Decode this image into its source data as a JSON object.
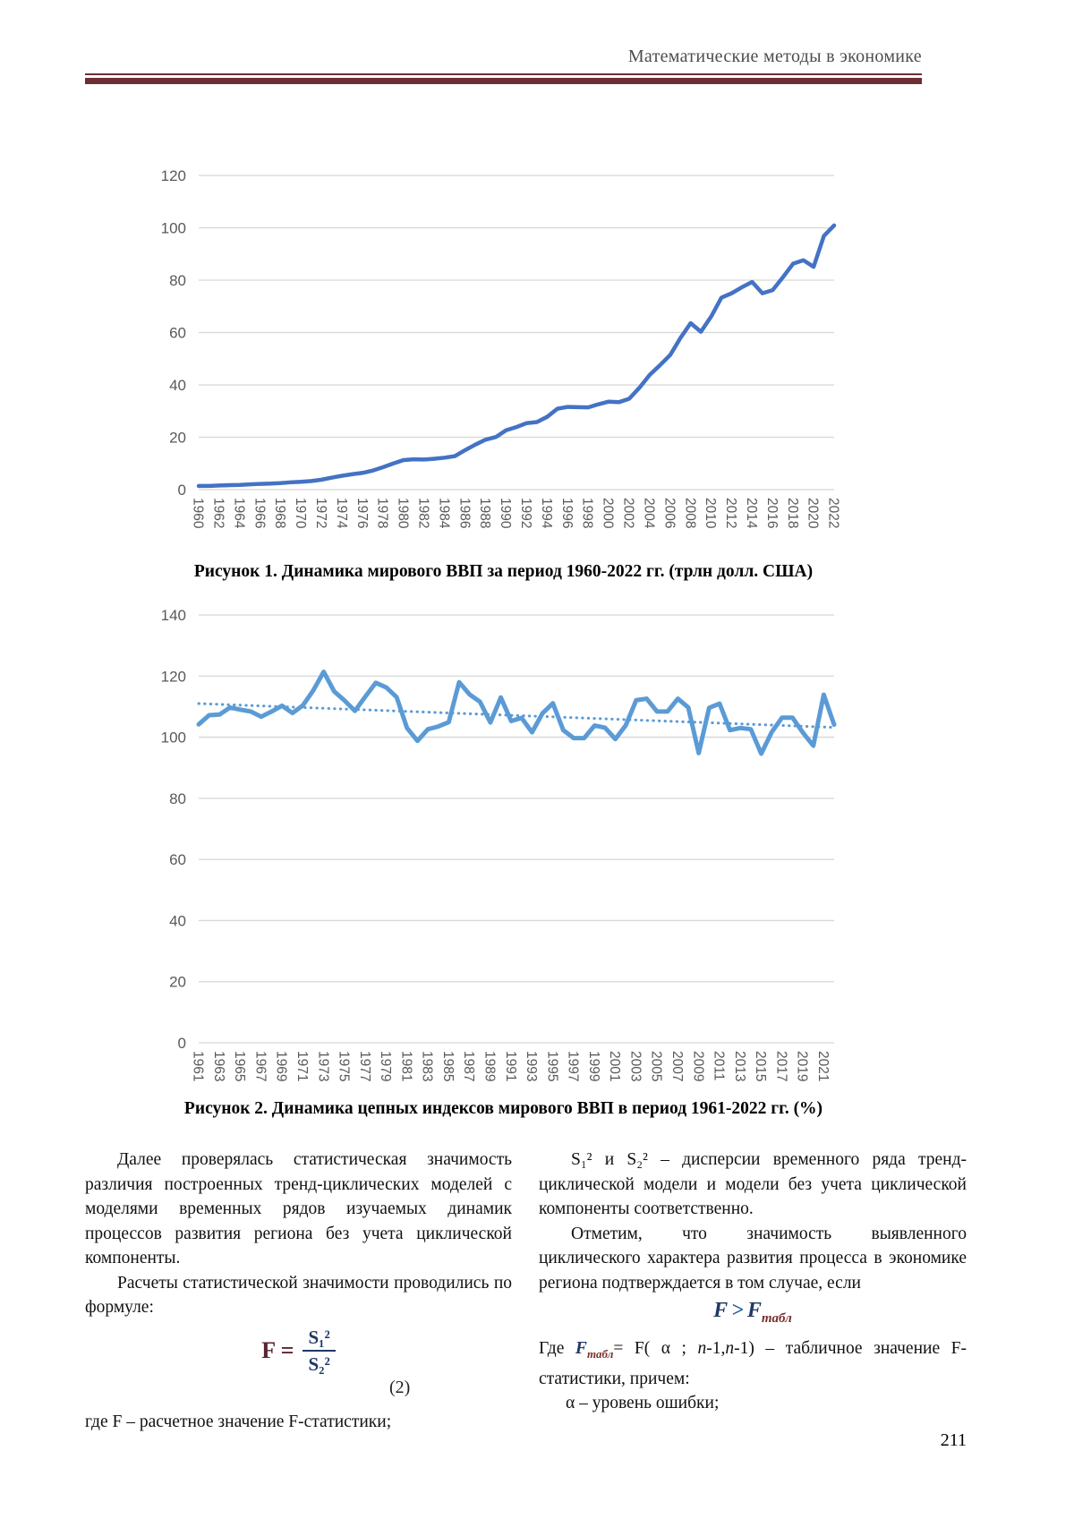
{
  "header": {
    "title": "Математические методы в экономике"
  },
  "page_number": "211",
  "chart_data": [
    {
      "type": "line",
      "title": "Рисунок 1. Динамика мирового ВВП за период 1960-2022 гг. (трлн долл. США)",
      "x": [
        1960,
        1961,
        1962,
        1963,
        1964,
        1965,
        1966,
        1967,
        1968,
        1969,
        1970,
        1971,
        1972,
        1973,
        1974,
        1975,
        1976,
        1977,
        1978,
        1979,
        1980,
        1981,
        1982,
        1983,
        1984,
        1985,
        1986,
        1987,
        1988,
        1989,
        1990,
        1991,
        1992,
        1993,
        1994,
        1995,
        1996,
        1997,
        1998,
        1999,
        2000,
        2001,
        2002,
        2003,
        2004,
        2005,
        2006,
        2007,
        2008,
        2009,
        2010,
        2011,
        2012,
        2013,
        2014,
        2015,
        2016,
        2017,
        2018,
        2019,
        2020,
        2021,
        2022
      ],
      "series": [
        {
          "values": [
            1.4,
            1.4,
            1.6,
            1.7,
            1.8,
            2.0,
            2.2,
            2.3,
            2.5,
            2.8,
            3.0,
            3.3,
            3.8,
            4.6,
            5.3,
            5.9,
            6.4,
            7.3,
            8.6,
            10.0,
            11.3,
            11.6,
            11.5,
            11.8,
            12.2,
            12.8,
            15.1,
            17.2,
            19.1,
            20.1,
            22.7,
            23.9,
            25.4,
            25.8,
            27.8,
            30.9,
            31.6,
            31.5,
            31.4,
            32.6,
            33.6,
            33.4,
            34.7,
            38.9,
            43.8,
            47.5,
            51.4,
            57.9,
            63.6,
            60.3,
            66.1,
            73.3,
            75.0,
            77.3,
            79.3,
            75.0,
            76.2,
            81.1,
            86.3,
            87.6,
            85.1,
            96.9,
            100.9
          ]
        }
      ],
      "ylim": [
        0,
        120
      ],
      "ytick": 20,
      "xtick_every": 2,
      "grid": true,
      "legend": "none",
      "line_color": "#4472C4",
      "line_width": 4.5,
      "grid_color": "#D6D6D6",
      "tick_color": "#595959"
    },
    {
      "type": "line",
      "title": "Рисунок 2. Динамика цепных индексов мирового ВВП в период 1961-2022 гг. (%)",
      "x": [
        1961,
        1962,
        1963,
        1964,
        1965,
        1966,
        1967,
        1968,
        1969,
        1970,
        1971,
        1972,
        1973,
        1974,
        1975,
        1976,
        1977,
        1978,
        1979,
        1980,
        1981,
        1982,
        1983,
        1984,
        1985,
        1986,
        1987,
        1988,
        1989,
        1990,
        1991,
        1992,
        1993,
        1994,
        1995,
        1996,
        1997,
        1998,
        1999,
        2000,
        2001,
        2002,
        2003,
        2004,
        2005,
        2006,
        2007,
        2008,
        2009,
        2010,
        2011,
        2012,
        2013,
        2014,
        2015,
        2016,
        2017,
        2018,
        2019,
        2020,
        2021,
        2022
      ],
      "series": [
        {
          "values": [
            104.2,
            107.2,
            107.4,
            109.7,
            109.0,
            108.4,
            106.7,
            108.4,
            110.3,
            107.9,
            110.4,
            115.3,
            121.4,
            115.0,
            112.0,
            108.6,
            113.3,
            117.8,
            116.3,
            113.1,
            103.0,
            98.8,
            102.6,
            103.5,
            104.9,
            118.0,
            114.0,
            111.6,
            104.8,
            113.0,
            105.3,
            106.3,
            101.6,
            107.8,
            111.1,
            102.3,
            99.7,
            99.7,
            103.8,
            103.1,
            99.4,
            103.9,
            112.1,
            112.6,
            108.4,
            108.4,
            112.6,
            109.7,
            94.8,
            109.6,
            111.0,
            102.3,
            103.0,
            102.6,
            94.6,
            101.6,
            106.4,
            106.4,
            101.5,
            97.2,
            113.9,
            104.1
          ]
        }
      ],
      "trend": {
        "start": 111.0,
        "end": 103.2,
        "style": "dotted",
        "color": "#5B9BD5"
      },
      "ylim": [
        0,
        140
      ],
      "ytick": 20,
      "xtick_every": 2,
      "grid": true,
      "legend": "none",
      "line_color": "#5B9BD5",
      "line_width": 5,
      "grid_color": "#D6D6D6",
      "tick_color": "#595959"
    }
  ],
  "body": {
    "left": {
      "p1": "Далее проверялась статистическая значимость различия построенных тренд-циклических моделей с моделями временных рядов изучаемых динамик процессов развития региона без учета циклической компоненты.",
      "p2": "Расчеты статистической значимости проводились по формуле:",
      "formula": {
        "lhs": "F =",
        "num": "S₁²",
        "den": "S₂²",
        "number": "(2)"
      },
      "where_line": "где  F – расчетное значение F-статистики;"
    },
    "right": {
      "p1": "S₁² и S₂² – дисперсии временного ряда тренд-циклической модели и модели без учета циклической компоненты соответственно.",
      "p2": "Отметим, что значимость выявленного циклического характера развития процесса в экономике региона подтверждается в том случае, если",
      "formula": {
        "f1": "F",
        "rel": ">",
        "f2": "F",
        "sub": "табл"
      },
      "p3": {
        "t1": "Где ",
        "f": "F",
        "sub": "табл",
        "t2": "= F( α ; ",
        "n1": "n",
        "t3": "-1,",
        "n2": "n",
        "t4": "-1)  – табличное значение F-статистики, причем:"
      },
      "p4": "α – уровень ошибки;"
    }
  }
}
